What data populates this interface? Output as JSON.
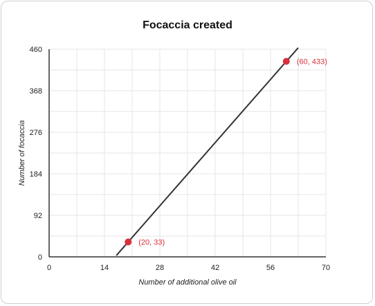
{
  "chart_data": {
    "type": "line",
    "title": "Focaccia created",
    "xlabel": "Number of additional olive oil",
    "ylabel": "Number of focaccia",
    "xlim": [
      0,
      70
    ],
    "ylim": [
      0,
      460
    ],
    "x_ticks": [
      0,
      14,
      28,
      42,
      56,
      70
    ],
    "y_ticks": [
      0,
      92,
      184,
      276,
      368,
      460
    ],
    "x_minor_step": 7,
    "y_minor_step": 46,
    "grid": true,
    "line": {
      "x_start": 17,
      "x_end": 63,
      "slope": 10,
      "intercept": -167
    },
    "points": [
      {
        "x": 20,
        "y": 33,
        "label": "(20, 33)"
      },
      {
        "x": 60,
        "y": 433,
        "label": "(60, 433)"
      }
    ],
    "colors": {
      "line": "#333333",
      "point": "#d8313a",
      "grid": "#e6e6e6",
      "axis": "#333333"
    }
  }
}
